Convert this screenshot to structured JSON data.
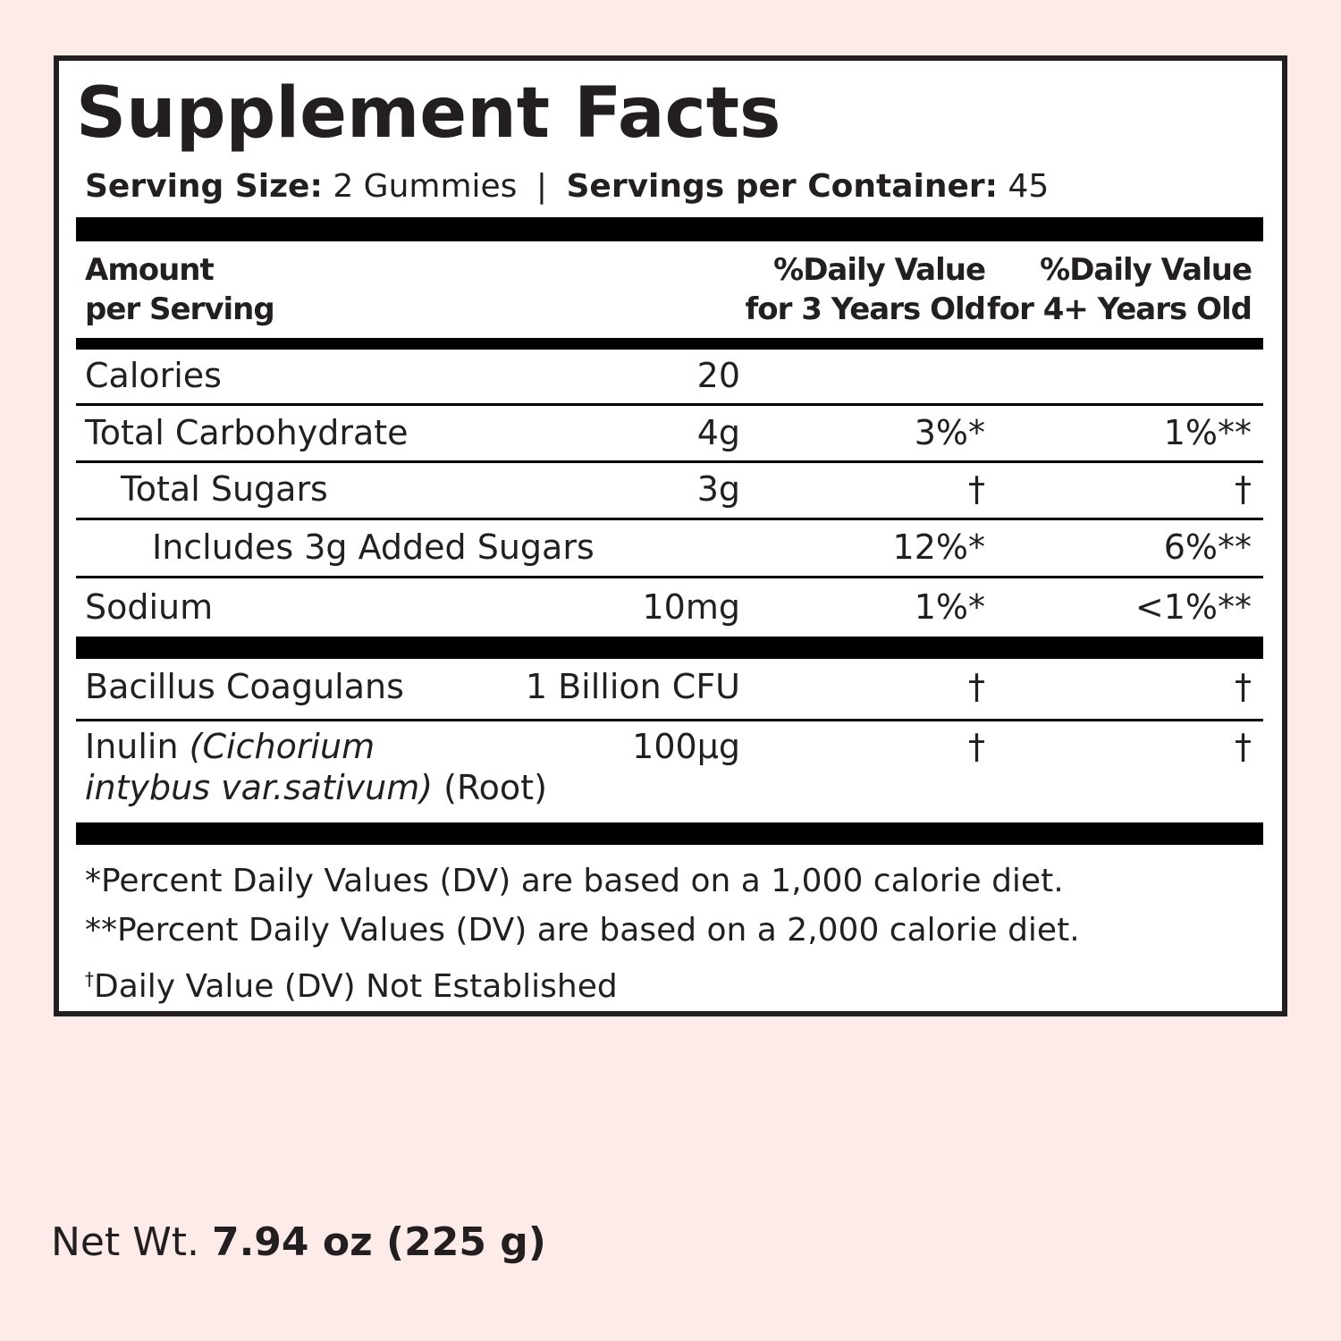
{
  "title": "Supplement Facts",
  "serving": {
    "size_label": "Serving Size:",
    "size_value": "2 Gummies",
    "separator": "|",
    "container_label": "Servings per Container:",
    "container_value": "45"
  },
  "header": {
    "amount": [
      "Amount",
      "per Serving"
    ],
    "dv_3": [
      "%Daily Value",
      "for 3 Years Old"
    ],
    "dv_4": [
      "%Daily Value",
      "for 4+ Years Old"
    ]
  },
  "rows": [
    {
      "name": "Calories",
      "amount": "20"
    },
    {
      "name": "Total Carbohydrate",
      "amount": "4g",
      "dv_3": "3%*",
      "dv_4": "1%**"
    },
    {
      "name": "Total Sugars",
      "amount": "3g",
      "dv_3": "†",
      "dv_4": "†"
    },
    {
      "name": "Includes 3g Added Sugars",
      "dv_3": "12%*",
      "dv_4": "6%**"
    },
    {
      "name": "Sodium",
      "amount": "10mg",
      "dv_3": "1%*",
      "dv_4": "<1%**"
    },
    {
      "name": "Bacillus Coagulans",
      "amount": "1 Billion CFU",
      "dv_3": "†",
      "dv_4": "†"
    },
    {
      "name": "Inulin",
      "name_italic": [
        "(Cichorium",
        "intybus var.sativum)"
      ],
      "name_suffix": "(Root)",
      "amount": "100µg",
      "dv_3": "†",
      "dv_4": "†"
    }
  ],
  "footnotes": [
    "*Percent Daily Values (DV) are based on a 1,000 calorie diet.",
    "**Percent Daily Values (DV) are based on a 2,000 calorie diet."
  ],
  "footnote_dagger": {
    "mark": "†",
    "text": "Daily Value (DV) Not Established"
  },
  "net_weight": {
    "label": "Net Wt.",
    "value": "7.94 oz (225 g)"
  }
}
